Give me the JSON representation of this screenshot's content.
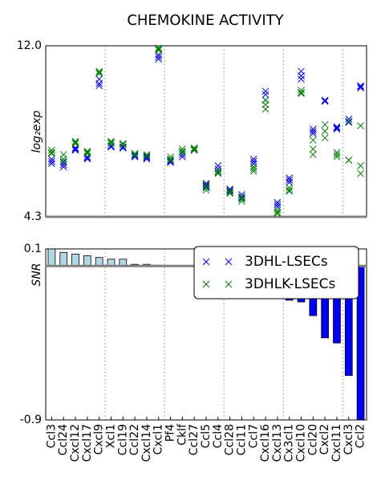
{
  "chart_data": [
    {
      "type": "scatter",
      "title": "CHEMOKINE ACTIVITY",
      "y_label": "log₂exp",
      "ylim": [
        4.3,
        12.0
      ],
      "yticks": [
        4.3,
        {
          "value": 12.0,
          "label": "12.0"
        }
      ],
      "series": [
        {
          "name": "3DHL-LSECs",
          "color": "#0000ff",
          "marker": "x",
          "values": [
            [
              6.9,
              6.8,
              6.7
            ],
            [
              6.75,
              6.65,
              6.55
            ],
            [
              7.4,
              7.35,
              7.3
            ],
            [
              7.0,
              6.95,
              6.9
            ],
            [
              10.5,
              10.3,
              10.2
            ],
            [
              7.5,
              7.45,
              7.45
            ],
            [
              7.45,
              7.4,
              7.4
            ],
            [
              7.05,
              7.0,
              7.0
            ],
            [
              7.0,
              6.95,
              6.9
            ],
            [
              11.6,
              11.5,
              11.4
            ],
            [
              6.85,
              6.8,
              6.75
            ],
            [
              7.2,
              7.1,
              7.0
            ],
            [
              7.35,
              7.3,
              7.3
            ],
            [
              5.8,
              5.7,
              5.65
            ],
            [
              6.6,
              6.45,
              6.35
            ],
            [
              5.55,
              5.5,
              5.45
            ],
            [
              5.3,
              5.2,
              5.15
            ],
            [
              6.9,
              6.8,
              6.7
            ],
            [
              9.95,
              9.8,
              9.55
            ],
            [
              4.95,
              4.85,
              4.75
            ],
            [
              6.05,
              5.95,
              5.85
            ],
            [
              10.85,
              10.65,
              10.5
            ],
            [
              8.25,
              8.15,
              8.05
            ],
            [
              9.55,
              9.5,
              9.5
            ],
            [
              8.35,
              8.3,
              8.25
            ],
            [
              8.7,
              8.6,
              8.55
            ],
            [
              10.2,
              10.15,
              10.1
            ]
          ]
        },
        {
          "name": "3DHLK-LSECs",
          "color": "#008000",
          "marker": "x",
          "values": [
            [
              7.3,
              7.2,
              7.15
            ],
            [
              7.1,
              6.9,
              6.8
            ],
            [
              7.7,
              7.65,
              7.6
            ],
            [
              7.25,
              7.2,
              7.15
            ],
            [
              10.85,
              10.8,
              10.75
            ],
            [
              7.7,
              7.65,
              7.6
            ],
            [
              7.6,
              7.55,
              7.55
            ],
            [
              7.15,
              7.1,
              7.1
            ],
            [
              7.1,
              7.05,
              7.05
            ],
            [
              11.9,
              11.85,
              11.8
            ],
            [
              7.0,
              6.9,
              6.85
            ],
            [
              7.35,
              7.25,
              7.2
            ],
            [
              7.4,
              7.35,
              7.3
            ],
            [
              5.75,
              5.6,
              5.5
            ],
            [
              6.35,
              6.3,
              6.25
            ],
            [
              5.5,
              5.4,
              5.35
            ],
            [
              5.2,
              5.1,
              5.0
            ],
            [
              6.55,
              6.45,
              6.35
            ],
            [
              9.55,
              9.35,
              9.15
            ],
            [
              4.6,
              4.5,
              4.45
            ],
            [
              5.6,
              5.5,
              5.45
            ],
            [
              10.0,
              9.9,
              9.85
            ],
            [
              7.75,
              7.35,
              7.1
            ],
            [
              8.45,
              8.15,
              7.85
            ],
            [
              7.2,
              7.1,
              7.0
            ],
            [
              8.6,
              6.85,
              6.85
            ],
            [
              8.4,
              6.6,
              6.25
            ]
          ]
        }
      ]
    },
    {
      "type": "bar",
      "y_label": "SNR",
      "categories": [
        "Ccl3",
        "Ccl24",
        "Cxcl12",
        "Cxcl17",
        "Cxcl9",
        "Xcl1",
        "Ccl19",
        "Ccl22",
        "Cxcl14",
        "Cxcl1",
        "Pf4",
        "Cklf",
        "Ccl27",
        "Ccl5",
        "Ccl4",
        "Ccl28",
        "Ccl11",
        "Ccl7",
        "Cxcl16",
        "Cxcl13",
        "Cx3cl1",
        "Cxcl10",
        "Ccl20",
        "Cxcl2",
        "Cxcl11",
        "Cxcl3",
        "Ccl2"
      ],
      "values": [
        0.1,
        0.08,
        0.07,
        0.06,
        0.05,
        0.04,
        0.04,
        0.01,
        0.01,
        0.005,
        0.002,
        -0.003,
        -0.003,
        -0.004,
        -0.005,
        -0.005,
        -0.006,
        -0.006,
        -0.008,
        -0.01,
        -0.2,
        -0.21,
        -0.29,
        -0.42,
        -0.45,
        -0.64,
        -0.9
      ],
      "positive_color": "#add8e6",
      "negative_color": "#0000ff",
      "ylim": [
        -0.9,
        0.1
      ],
      "yticks": [
        -0.9,
        0.1
      ]
    }
  ]
}
